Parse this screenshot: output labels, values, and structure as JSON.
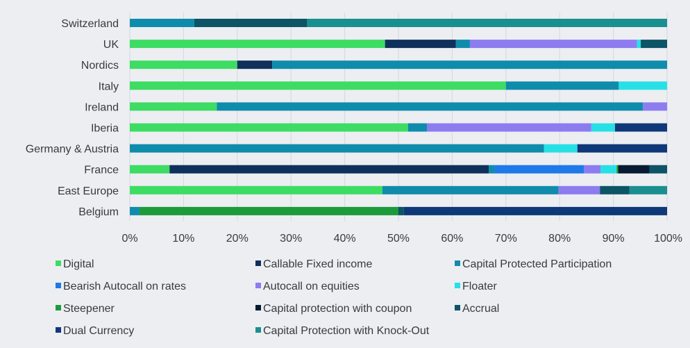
{
  "chart_data": {
    "type": "bar",
    "orientation": "horizontal",
    "stacked": "percent",
    "categories": [
      "Switzerland",
      "UK",
      "Nordics",
      "Italy",
      "Ireland",
      "Iberia",
      "Germany & Austria",
      "France",
      "East Europe",
      "Belgium"
    ],
    "xlim": [
      0,
      100
    ],
    "x_ticks": [
      "0%",
      "10%",
      "20%",
      "30%",
      "40%",
      "50%",
      "60%",
      "70%",
      "80%",
      "90%",
      "100%"
    ],
    "grid": true,
    "legend_position": "bottom",
    "series": [
      {
        "name": "Digital",
        "color": "#3ddc63",
        "values": [
          0,
          47.5,
          20,
          70,
          16.2,
          51.8,
          0,
          7.4,
          47,
          0
        ]
      },
      {
        "name": "Callable Fixed income",
        "color": "#10305c",
        "values": [
          0,
          13.2,
          6.5,
          0,
          0,
          0,
          0,
          59.4,
          0,
          0
        ]
      },
      {
        "name": "Capital Protected Participation",
        "color": "#0f8cab",
        "values": [
          12,
          2.6,
          73.5,
          21,
          79.3,
          3.5,
          77.1,
          1.1,
          32.8,
          1.8
        ]
      },
      {
        "name": "Bearish Autocall on rates",
        "color": "#1f79e8",
        "values": [
          0,
          0,
          0,
          0,
          0,
          0,
          0,
          16.6,
          0,
          0
        ]
      },
      {
        "name": "Autocall on equities",
        "color": "#8c7cf0",
        "values": [
          0,
          31.1,
          0,
          0,
          4.5,
          30.6,
          0,
          3.1,
          7.7,
          0
        ]
      },
      {
        "name": "Floater",
        "color": "#27e0e6",
        "values": [
          0,
          0.7,
          0,
          9,
          0,
          4.4,
          6.2,
          3,
          0,
          0
        ]
      },
      {
        "name": "Steepener",
        "color": "#1c9b3a",
        "values": [
          0,
          0,
          0,
          0,
          0,
          0,
          0,
          0.3,
          0,
          48.2
        ]
      },
      {
        "name": "Capital protection with coupon",
        "color": "#061b33",
        "values": [
          0,
          0,
          0,
          0,
          0,
          0,
          0,
          5.8,
          0,
          0
        ]
      },
      {
        "name": "Accrual",
        "color": "#0c5466",
        "values": [
          21,
          4.9,
          0,
          0,
          0,
          0,
          0,
          3.3,
          5.5,
          1
        ]
      },
      {
        "name": "Dual Currency",
        "color": "#0f3878",
        "values": [
          0,
          0,
          0,
          0,
          0,
          9.7,
          16.7,
          0,
          0,
          49
        ]
      },
      {
        "name": "Capital Protection with Knock-Out",
        "color": "#1a8f8f",
        "values": [
          67,
          0,
          0,
          0,
          0,
          0,
          0,
          0,
          7,
          0
        ]
      }
    ]
  }
}
